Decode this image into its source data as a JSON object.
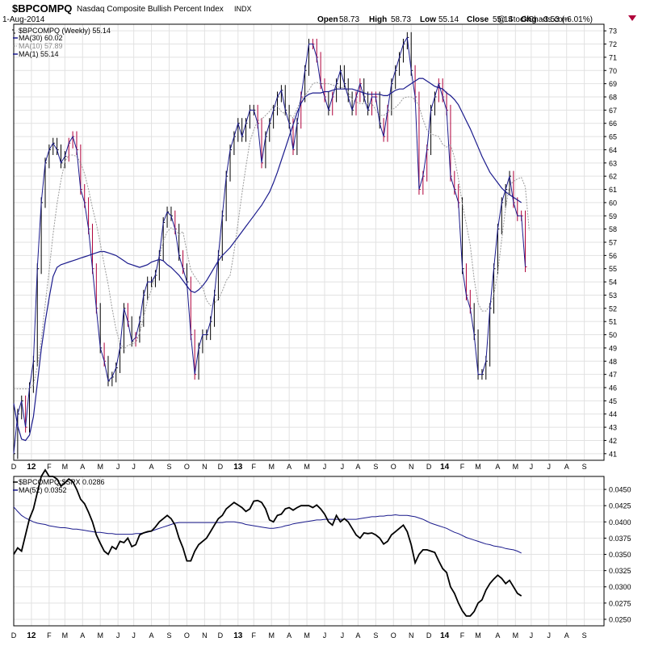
{
  "header": {
    "symbol": "$BPCOMPQ",
    "name": "Nasdaq Composite Bullish Percent Index",
    "exchange": "INDX",
    "date": "1-Aug-2014",
    "open_label": "Open",
    "open": "58.73",
    "high_label": "High",
    "high": "58.73",
    "low_label": "Low",
    "low": "55.14",
    "close_label": "Close",
    "close": "55.14",
    "chg_label": "Chg",
    "chg": "-3.53 (-6.01%)",
    "watermark": "@ StockCharts.com"
  },
  "colors": {
    "price": "#000000",
    "down": "#b0003a",
    "ma30": "#1a1a8c",
    "ma10": "#9a9a9a",
    "ma1": "#1a1a8c",
    "ratio": "#000000",
    "ratio_ma": "#1a1a8c",
    "grid": "#e2e2e2",
    "axis": "#000000"
  },
  "chart_data": [
    {
      "type": "line",
      "title": "$BPCOMPQ (Weekly) 55.14",
      "legend": [
        {
          "label": "$BPCOMPQ (Weekly) 55.14",
          "style": "ohlc"
        },
        {
          "label": "MA(30) 60.02",
          "style": "solid"
        },
        {
          "label": "MA(10) 57.89",
          "style": "dotted"
        },
        {
          "label": "MA(1) 55.14",
          "style": "solid"
        }
      ],
      "legend_position": "top-left",
      "ylim": [
        40.5,
        73.5
      ],
      "y_ticks": [
        41,
        42,
        43,
        44,
        45,
        46,
        47,
        48,
        49,
        50,
        51,
        52,
        53,
        54,
        55,
        56,
        57,
        58,
        59,
        60,
        61,
        62,
        63,
        64,
        65,
        66,
        67,
        68,
        69,
        70,
        71,
        72,
        73
      ],
      "x_ticks": [
        "D",
        "12",
        "F",
        "M",
        "A",
        "M",
        "J",
        "J",
        "A",
        "S",
        "O",
        "N",
        "D",
        "13",
        "F",
        "M",
        "A",
        "M",
        "J",
        "J",
        "A",
        "S",
        "O",
        "N",
        "D",
        "14",
        "F",
        "M",
        "A",
        "M",
        "J",
        "J",
        "A",
        "S"
      ],
      "x_tick_bold": [
        "12",
        "13",
        "14"
      ],
      "x_tick_weeks": [
        0,
        4.5,
        9,
        13,
        17.5,
        22,
        26.5,
        30.5,
        35,
        39.5,
        44,
        48.5,
        52.5,
        57,
        61,
        65.5,
        70,
        74.5,
        79,
        83.5,
        87.5,
        92,
        96.5,
        101,
        105.5,
        109.5,
        114,
        118,
        123,
        127.5,
        131.5,
        136,
        140.5,
        145
      ],
      "series": [
        {
          "name": "MA(1)",
          "values": [
            41,
            44,
            45,
            43,
            46,
            48,
            55,
            60,
            63,
            64,
            64.5,
            64,
            63,
            63.5,
            64.5,
            65,
            64,
            61,
            60,
            58,
            55,
            52,
            49,
            48,
            46.5,
            46.8,
            47.5,
            49,
            52,
            51,
            49.5,
            49.8,
            51,
            53,
            54,
            54,
            54.5,
            56,
            58.5,
            59.3,
            59,
            58,
            56,
            55,
            54,
            50,
            47,
            49,
            50,
            50,
            51,
            53,
            56,
            59,
            62,
            64,
            65,
            66,
            65,
            66,
            67,
            67,
            66,
            63,
            65,
            66,
            67,
            68,
            68.5,
            67,
            66,
            64,
            66,
            68,
            70,
            72,
            72,
            71,
            69,
            68,
            67,
            68,
            69,
            70,
            69,
            68,
            67,
            68,
            69,
            68,
            67,
            68,
            68,
            66,
            65,
            67,
            69,
            70,
            71,
            72,
            72.5,
            70,
            68,
            61,
            62,
            64,
            67,
            68,
            69,
            68,
            67,
            62,
            61,
            60,
            55,
            53,
            52,
            50,
            47,
            47,
            48,
            52,
            55,
            58,
            60,
            61,
            62,
            60,
            59,
            59,
            55.14
          ]
        },
        {
          "name": "MA(10)",
          "values": [
            45.9,
            45.9,
            45.9,
            45.9,
            45.9,
            46.2,
            47.6,
            49.6,
            52.3,
            54.9,
            57.6,
            59.9,
            61.7,
            63.1,
            63.6,
            63.6,
            63.5,
            63.0,
            62.2,
            61.0,
            59.6,
            58.4,
            56.9,
            55.3,
            53.8,
            52.0,
            50.4,
            49.4,
            48.9,
            49.2,
            49.3,
            49.4,
            50.1,
            51.3,
            52.6,
            53.4,
            54.6,
            55.9,
            57.1,
            57.8,
            58.1,
            57.9,
            57.6,
            57.8,
            56.3,
            54.9,
            54.4,
            54.0,
            53.6,
            52.6,
            52.2,
            52.4,
            52.7,
            53.3,
            54.1,
            54.5,
            56.3,
            58.5,
            60.7,
            62.7,
            64.6,
            65.5,
            66.2,
            66.3,
            66.6,
            66.9,
            67.3,
            67.3,
            66.9,
            66.7,
            66.7,
            66.4,
            67.1,
            67.8,
            68.1,
            68.5,
            69.0,
            69.1,
            69.0,
            69.0,
            69.0,
            68.9,
            68.8,
            68.7,
            68.7,
            68.4,
            67.8,
            67.6,
            67.5,
            67.5,
            67.5,
            67.5,
            67.0,
            66.6,
            66.6,
            66.8,
            67.0,
            67.2,
            67.5,
            67.9,
            68.0,
            68.0,
            67.8,
            67.3,
            66.3,
            65.5,
            65.2,
            65.1,
            65.0,
            64.4,
            64.2,
            64.4,
            63.4,
            61.8,
            59.9,
            58.4,
            56.8,
            54.2,
            52.4,
            51.8,
            51.8,
            52.2,
            53.0,
            54.7,
            57.2,
            59.6,
            61.3,
            61.6,
            61.8,
            61.9,
            61.2,
            57.9
          ]
        },
        {
          "name": "MA(30)",
          "values": [
            44.8,
            43.1,
            42.1,
            42.0,
            42.4,
            43.8,
            46.3,
            48.9,
            51.0,
            52.8,
            54.4,
            55.1,
            55.3,
            55.4,
            55.5,
            55.6,
            55.7,
            55.8,
            55.9,
            56.0,
            56.1,
            56.2,
            56.3,
            56.3,
            56.2,
            56.1,
            56.0,
            55.8,
            55.6,
            55.4,
            55.3,
            55.2,
            55.1,
            55.2,
            55.3,
            55.5,
            55.6,
            55.7,
            55.6,
            55.3,
            55.1,
            54.8,
            54.5,
            54.1,
            53.7,
            53.3,
            53.2,
            53.4,
            53.7,
            54.1,
            54.6,
            55.1,
            55.6,
            56.0,
            56.3,
            56.6,
            57.0,
            57.4,
            57.8,
            58.2,
            58.6,
            59.0,
            59.4,
            59.8,
            60.3,
            60.8,
            61.5,
            62.3,
            63.2,
            64.1,
            65.0,
            65.9,
            66.8,
            67.5,
            68.0,
            68.2,
            68.3,
            68.3,
            68.3,
            68.4,
            68.4,
            68.5,
            68.6,
            68.6,
            68.6,
            68.6,
            68.6,
            68.5,
            68.4,
            68.3,
            68.2,
            68.2,
            68.2,
            68.2,
            68.1,
            68.1,
            68.3,
            68.5,
            68.6,
            68.6,
            68.8,
            69.0,
            69.2,
            69.4,
            69.4,
            69.2,
            69.0,
            68.8,
            68.7,
            68.6,
            68.3,
            68.1,
            67.8,
            67.4,
            66.8,
            66.2,
            65.6,
            64.9,
            64.2,
            63.5,
            62.9,
            62.3,
            61.9,
            61.5,
            61.1,
            60.8,
            60.6,
            60.4,
            60.2,
            60.0
          ]
        }
      ],
      "down_weeks": [
        3,
        14,
        15,
        16,
        17,
        18,
        19,
        20,
        21,
        23,
        29,
        31,
        41,
        43,
        45,
        46,
        62,
        63,
        71,
        73,
        76,
        77,
        78,
        79,
        81,
        87,
        88,
        91,
        92,
        94,
        95,
        102,
        103,
        104,
        105,
        108,
        109,
        110,
        111,
        112,
        113,
        115,
        116,
        127,
        128,
        129,
        130,
        131,
        132
      ]
    },
    {
      "type": "line",
      "title": "$BPCOMPQ:$SPX 0.0286",
      "legend": [
        {
          "label": "$BPCOMPQ:$SPX 0.0286",
          "style": "solid"
        },
        {
          "label": "MA(52) 0.0352",
          "style": "solid"
        }
      ],
      "legend_position": "top-left",
      "ylim": [
        0.024,
        0.047
      ],
      "y_ticks": [
        "0.0250",
        "0.0275",
        "0.0300",
        "0.0325",
        "0.0350",
        "0.0375",
        "0.0400",
        "0.0425",
        "0.0450"
      ],
      "series": [
        {
          "name": "$BPCOMPQ:$SPX",
          "values": [
            0.035,
            0.036,
            0.0355,
            0.038,
            0.0405,
            0.042,
            0.0445,
            0.047,
            0.048,
            0.047,
            0.047,
            0.0466,
            0.0455,
            0.046,
            0.0466,
            0.0462,
            0.045,
            0.0435,
            0.0428,
            0.0415,
            0.04,
            0.038,
            0.0367,
            0.0355,
            0.035,
            0.0362,
            0.0358,
            0.037,
            0.0368,
            0.0375,
            0.0362,
            0.0365,
            0.038,
            0.0383,
            0.0385,
            0.0386,
            0.0392,
            0.04,
            0.0405,
            0.041,
            0.0405,
            0.0395,
            0.0375,
            0.036,
            0.034,
            0.034,
            0.0355,
            0.0365,
            0.037,
            0.0375,
            0.0385,
            0.0395,
            0.0405,
            0.041,
            0.042,
            0.0425,
            0.043,
            0.0426,
            0.0422,
            0.0416,
            0.042,
            0.0432,
            0.0433,
            0.043,
            0.042,
            0.0403,
            0.04,
            0.041,
            0.0412,
            0.042,
            0.0422,
            0.0418,
            0.0422,
            0.0425,
            0.0425,
            0.0425,
            0.0422,
            0.0426,
            0.042,
            0.0412,
            0.04,
            0.0395,
            0.041,
            0.04,
            0.0405,
            0.04,
            0.039,
            0.038,
            0.0375,
            0.0383,
            0.0382,
            0.0383,
            0.038,
            0.0375,
            0.0366,
            0.037,
            0.038,
            0.0385,
            0.039,
            0.0395,
            0.0385,
            0.0365,
            0.0337,
            0.035,
            0.0357,
            0.0357,
            0.0355,
            0.0353,
            0.034,
            0.0328,
            0.0322,
            0.03,
            0.029,
            0.0275,
            0.0263,
            0.0255,
            0.0255,
            0.0262,
            0.0275,
            0.028,
            0.0295,
            0.0305,
            0.0312,
            0.0318,
            0.0313,
            0.0305,
            0.031,
            0.03,
            0.029,
            0.0286
          ]
        },
        {
          "name": "MA(52)",
          "values": [
            0.0423,
            0.0416,
            0.041,
            0.0406,
            0.0403,
            0.04,
            0.0398,
            0.0397,
            0.0396,
            0.0394,
            0.0393,
            0.0392,
            0.0391,
            0.0391,
            0.039,
            0.0389,
            0.0389,
            0.0388,
            0.0387,
            0.0386,
            0.0385,
            0.0384,
            0.0384,
            0.0383,
            0.0382,
            0.0382,
            0.0381,
            0.0381,
            0.0381,
            0.0381,
            0.0381,
            0.0382,
            0.0382,
            0.0383,
            0.0384,
            0.0386,
            0.0388,
            0.039,
            0.0392,
            0.0394,
            0.0396,
            0.0398,
            0.0399,
            0.0399,
            0.0399,
            0.0399,
            0.0399,
            0.0399,
            0.0399,
            0.0399,
            0.0399,
            0.0399,
            0.0399,
            0.0399,
            0.04,
            0.04,
            0.04,
            0.0399,
            0.0398,
            0.0396,
            0.0395,
            0.0394,
            0.0393,
            0.0392,
            0.0391,
            0.039,
            0.039,
            0.0391,
            0.0392,
            0.0394,
            0.0395,
            0.0397,
            0.0398,
            0.0399,
            0.04,
            0.0401,
            0.0402,
            0.0403,
            0.0403,
            0.0404,
            0.0404,
            0.0404,
            0.0404,
            0.0404,
            0.0404,
            0.0404,
            0.0404,
            0.0404,
            0.0405,
            0.0406,
            0.0407,
            0.0408,
            0.0408,
            0.0409,
            0.0409,
            0.041,
            0.041,
            0.0411,
            0.041,
            0.041,
            0.041,
            0.0409,
            0.0408,
            0.0406,
            0.0404,
            0.0401,
            0.0398,
            0.0396,
            0.0394,
            0.0392,
            0.039,
            0.0387,
            0.0384,
            0.0382,
            0.0379,
            0.0376,
            0.0374,
            0.0372,
            0.037,
            0.0368,
            0.0366,
            0.0365,
            0.0363,
            0.0362,
            0.0361,
            0.0359,
            0.0358,
            0.0357,
            0.0355,
            0.0352
          ]
        }
      ]
    }
  ]
}
